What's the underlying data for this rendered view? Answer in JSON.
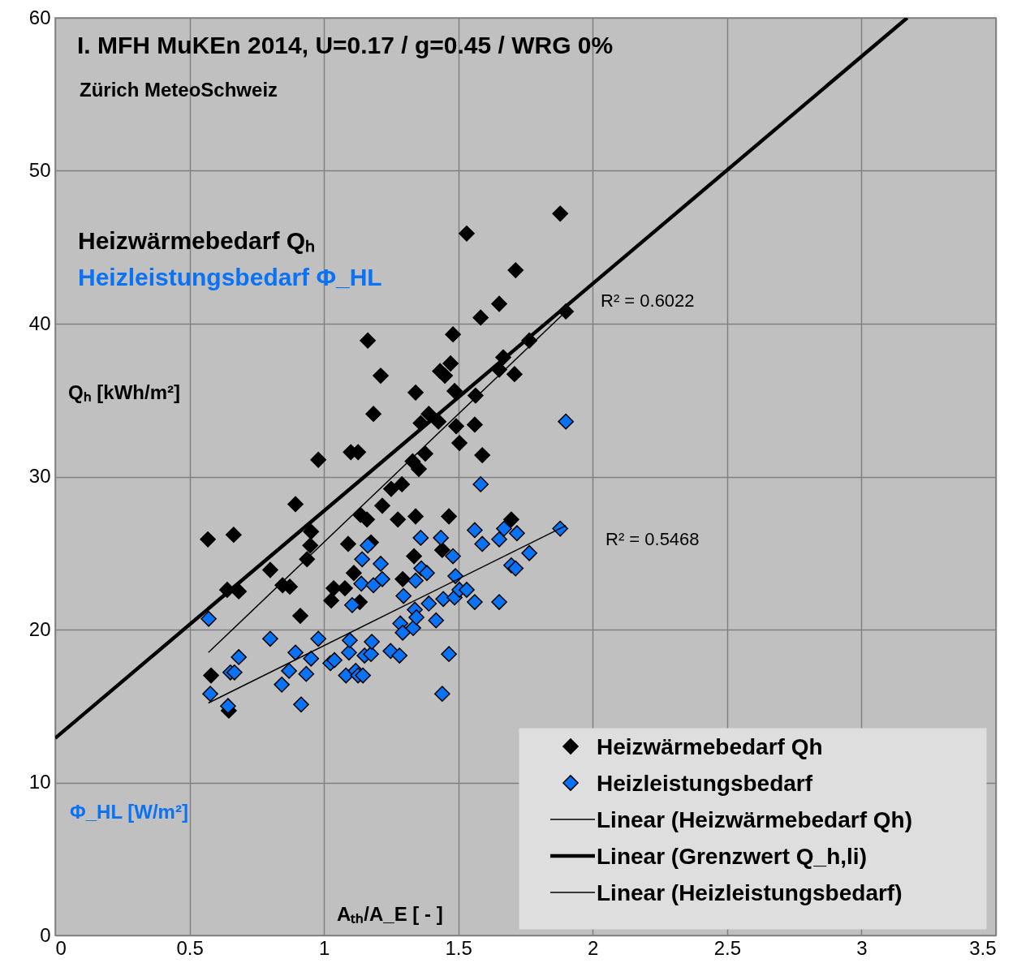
{
  "chart_data": {
    "type": "scatter",
    "title": "I. MFH  MuKEn 2014, U=0.17 / g=0.45 / WRG 0%",
    "subtitle": "Zürich MeteoSchweiz",
    "xlabel": "Aₜₕ/A_E [ - ]",
    "ylabel": "Qₕ [kWh/m²]",
    "xlim": [
      0,
      3.5
    ],
    "ylim": [
      0,
      60
    ],
    "xticks": [
      0,
      0.5,
      1,
      1.5,
      2,
      2.5,
      3,
      3.5
    ],
    "yticks": [
      0,
      10,
      20,
      30,
      40,
      50,
      60
    ],
    "grid": true,
    "legend": "bottom right",
    "series": [
      {
        "name": "Heizwärmebedarf Qh",
        "color": "#000000",
        "marker": "diamond",
        "x": [
          0.568,
          0.58,
          0.646,
          0.664,
          0.64,
          0.683,
          0.8,
          0.894,
          0.846,
          0.873,
          0.912,
          0.937,
          0.949,
          0.952,
          0.979,
          1.027,
          1.036,
          1.078,
          1.09,
          1.1,
          1.127,
          1.111,
          1.133,
          1.136,
          1.16,
          1.175,
          1.163,
          1.184,
          1.211,
          1.217,
          1.25,
          1.29,
          1.275,
          1.293,
          1.335,
          1.341,
          1.341,
          1.33,
          1.353,
          1.36,
          1.39,
          1.377,
          1.426,
          1.432,
          1.45,
          1.465,
          1.471,
          1.48,
          1.486,
          1.492,
          1.504,
          1.531,
          1.561,
          1.564,
          1.583,
          1.589,
          1.652,
          1.652,
          1.667,
          1.697,
          1.709,
          1.713,
          1.764,
          1.879,
          1.9,
          1.44
        ],
        "values": [
          25.9,
          17.0,
          14.7,
          26.2,
          22.6,
          22.5,
          23.9,
          28.2,
          22.9,
          22.8,
          20.9,
          24.6,
          25.5,
          26.4,
          31.1,
          21.9,
          22.7,
          22.7,
          25.6,
          31.6,
          31.6,
          23.7,
          21.8,
          27.5,
          27.2,
          25.7,
          38.9,
          34.1,
          36.6,
          28.1,
          29.2,
          29.5,
          27.2,
          23.3,
          24.8,
          27.4,
          35.5,
          31.0,
          30.5,
          33.5,
          34.1,
          31.5,
          33.6,
          36.9,
          36.6,
          27.4,
          37.4,
          39.3,
          35.6,
          33.3,
          32.2,
          45.9,
          33.4,
          35.3,
          40.4,
          31.4,
          41.3,
          37.0,
          37.8,
          27.2,
          36.7,
          43.5,
          38.9,
          47.2,
          40.8,
          25.2
        ]
      },
      {
        "name": "Heizleistungsbedarf",
        "color": "#0a72f5",
        "marker": "diamond",
        "x": [
          0.571,
          0.577,
          0.643,
          0.652,
          0.667,
          0.683,
          0.8,
          0.843,
          0.87,
          0.894,
          0.915,
          0.934,
          0.952,
          0.979,
          1.024,
          1.039,
          1.082,
          1.093,
          1.096,
          1.105,
          1.118,
          1.127,
          1.139,
          1.142,
          1.145,
          1.163,
          1.151,
          1.175,
          1.184,
          1.178,
          1.211,
          1.217,
          1.248,
          1.281,
          1.284,
          1.293,
          1.296,
          1.332,
          1.338,
          1.341,
          1.344,
          1.36,
          1.362,
          1.383,
          1.39,
          1.417,
          1.435,
          1.444,
          1.44,
          1.465,
          1.48,
          1.486,
          1.489,
          1.504,
          1.531,
          1.561,
          1.561,
          1.583,
          1.589,
          1.652,
          1.652,
          1.67,
          1.697,
          1.718,
          1.713,
          1.764,
          1.879,
          1.9
        ],
        "values": [
          20.7,
          15.8,
          15.0,
          17.2,
          17.2,
          18.2,
          19.4,
          16.4,
          17.3,
          18.5,
          15.1,
          17.1,
          18.1,
          19.4,
          17.8,
          18.0,
          17.0,
          18.5,
          19.3,
          21.6,
          17.3,
          17.0,
          23.0,
          24.6,
          17.0,
          25.5,
          18.3,
          18.4,
          22.9,
          19.2,
          24.3,
          23.3,
          18.6,
          18.3,
          20.4,
          19.8,
          22.2,
          20.1,
          21.3,
          23.2,
          20.8,
          26.0,
          24.0,
          23.7,
          21.7,
          20.6,
          26.0,
          22.0,
          15.8,
          18.4,
          24.8,
          22.1,
          23.5,
          22.6,
          22.6,
          21.8,
          26.5,
          29.5,
          25.6,
          21.8,
          25.9,
          26.6,
          24.2,
          26.3,
          24.0,
          25.0,
          26.6,
          33.6
        ]
      },
      {
        "name": "Linear (Heizwärmebedarf Qh)",
        "type": "line",
        "color": "#000000",
        "x": [
          0.57,
          1.9
        ],
        "values": [
          18.5,
          40.8
        ]
      },
      {
        "name": "Linear (Grenzwert Q_h,li)",
        "type": "line",
        "color": "#000000",
        "x": [
          0,
          3.17
        ],
        "values": [
          12.9,
          60
        ]
      },
      {
        "name": "Linear (Heizleistungsbedarf)",
        "type": "line",
        "color": "#000000",
        "x": [
          0.57,
          1.9
        ],
        "values": [
          15.2,
          26.8
        ]
      }
    ],
    "annotations": [
      "Heizwärmebedarf Qₕ",
      "Heizleistungsbedarf Φ_HL",
      "Φ_HL [W/m²]",
      "R² = 0.6022",
      "R² = 0.5468"
    ]
  }
}
